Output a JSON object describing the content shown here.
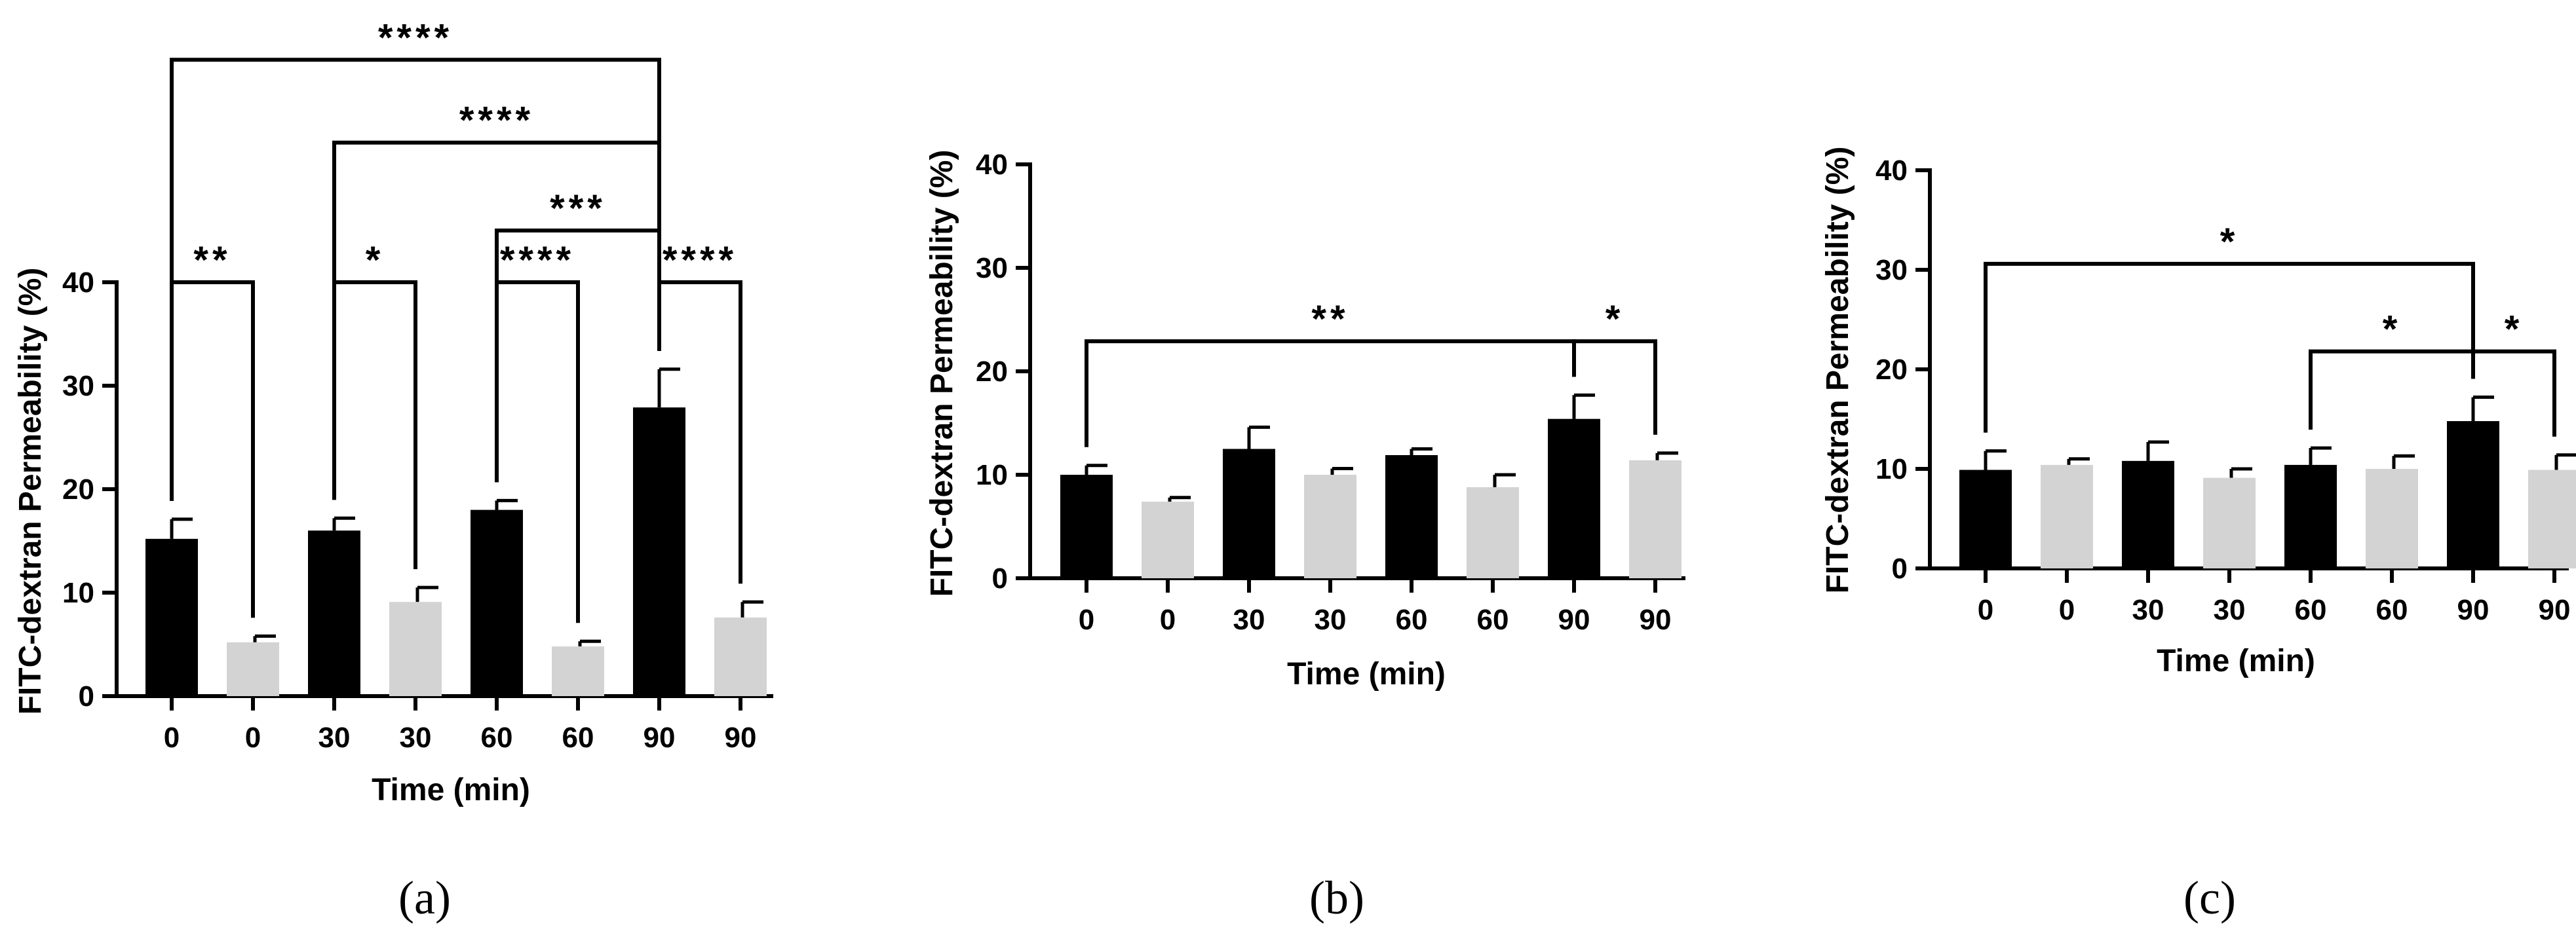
{
  "colors": {
    "dark_bar": "#000000",
    "light_bar": "#d3d3d3",
    "axis": "#000000"
  },
  "chart_data": [
    {
      "type": "bar",
      "panel_label": "(a)",
      "title": "",
      "xlabel": "Time (min)",
      "ylabel": "FITC-dextran Permeability (%)",
      "ylim": [
        0,
        40
      ],
      "yticks": [
        0,
        10,
        20,
        30,
        40
      ],
      "categories": [
        "0",
        "0",
        "30",
        "30",
        "60",
        "60",
        "90",
        "90"
      ],
      "bar_colors": [
        "dark",
        "light",
        "dark",
        "light",
        "dark",
        "light",
        "dark",
        "light"
      ],
      "values": [
        15.2,
        5.2,
        16.0,
        9.1,
        18.0,
        4.8,
        27.9,
        7.6
      ],
      "errors": [
        1.9,
        0.6,
        1.2,
        1.4,
        0.9,
        0.5,
        3.7,
        1.5
      ],
      "annotations": [
        {
          "from": 0,
          "to": 1,
          "level": 40,
          "label": "**"
        },
        {
          "from": 2,
          "to": 3,
          "level": 40,
          "label": "*"
        },
        {
          "from": 4,
          "to": 5,
          "level": 40,
          "label": "****"
        },
        {
          "from": 6,
          "to": 7,
          "level": 40,
          "label": "****"
        },
        {
          "from": 4,
          "to": 6,
          "level": 45,
          "label": "***"
        },
        {
          "from": 2,
          "to": 6,
          "level": 53.5,
          "label": "****"
        },
        {
          "from": 0,
          "to": 6,
          "level": 61.5,
          "label": "****"
        }
      ]
    },
    {
      "type": "bar",
      "panel_label": "(b)",
      "title": "",
      "xlabel": "Time (min)",
      "ylabel": "FITC-dextran Permeability (%)",
      "ylim": [
        0,
        40
      ],
      "yticks": [
        0,
        10,
        20,
        30,
        40
      ],
      "categories": [
        "0",
        "0",
        "30",
        "30",
        "60",
        "60",
        "90",
        "90"
      ],
      "bar_colors": [
        "dark",
        "light",
        "dark",
        "light",
        "dark",
        "light",
        "dark",
        "light"
      ],
      "values": [
        10.0,
        7.4,
        12.5,
        10.0,
        11.9,
        8.8,
        15.4,
        11.4
      ],
      "errors": [
        0.9,
        0.4,
        2.1,
        0.6,
        0.6,
        1.2,
        2.3,
        0.7
      ],
      "annotations": [
        {
          "from": 0,
          "to": 6,
          "level": 22.9,
          "label": "**"
        },
        {
          "from": 6,
          "to": 7,
          "level": 22.9,
          "label": "*"
        }
      ]
    },
    {
      "type": "bar",
      "panel_label": "(c)",
      "title": "",
      "xlabel": "Time (min)",
      "ylabel": "FITC-dextran Permeability (%)",
      "ylim": [
        0,
        40
      ],
      "yticks": [
        0,
        10,
        20,
        30,
        40
      ],
      "categories": [
        "0",
        "0",
        "30",
        "30",
        "60",
        "60",
        "90",
        "90"
      ],
      "bar_colors": [
        "dark",
        "light",
        "dark",
        "light",
        "dark",
        "light",
        "dark",
        "light"
      ],
      "values": [
        9.9,
        10.4,
        10.8,
        9.1,
        10.4,
        10.0,
        14.8,
        9.9
      ],
      "errors": [
        1.9,
        0.6,
        1.9,
        0.9,
        1.7,
        1.3,
        2.4,
        1.5
      ],
      "annotations": [
        {
          "from": 0,
          "to": 6,
          "level": 30.6,
          "label": "*"
        },
        {
          "from": 4,
          "to": 6,
          "level": 21.8,
          "label": "*"
        },
        {
          "from": 6,
          "to": 7,
          "level": 21.8,
          "label": "*"
        }
      ]
    }
  ]
}
